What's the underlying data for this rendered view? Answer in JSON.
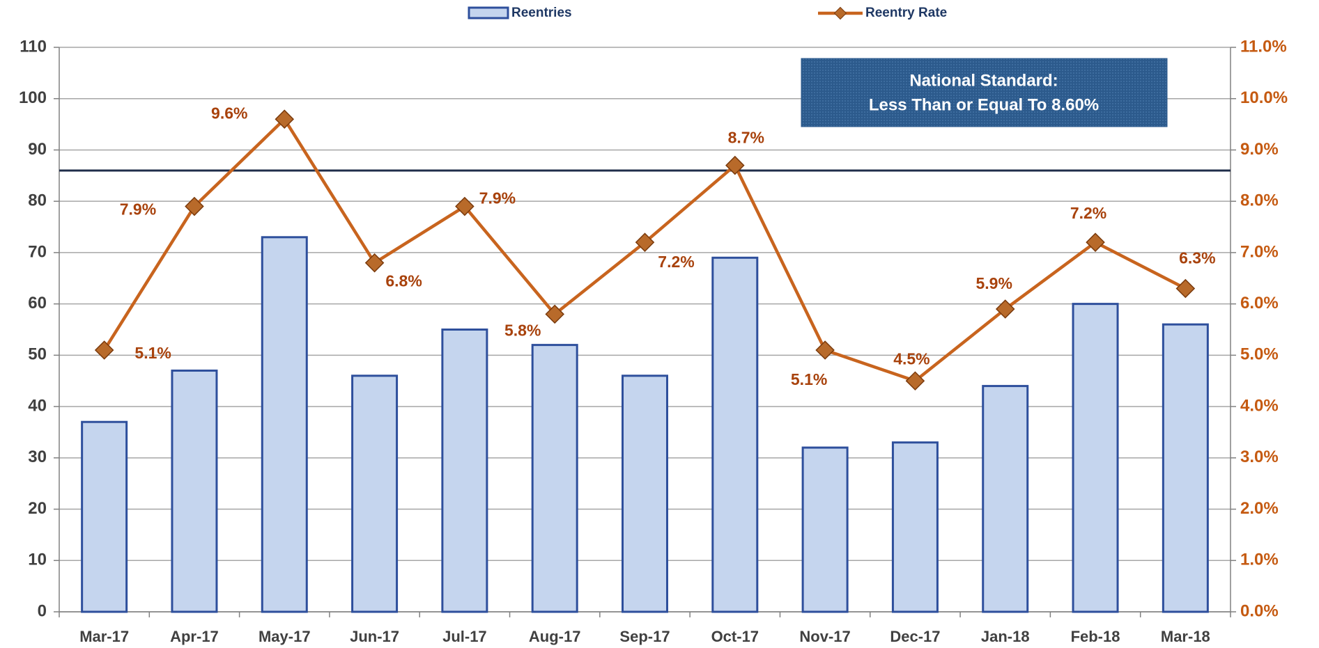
{
  "chart_data": {
    "type": "bar_line",
    "categories": [
      "Mar-17",
      "Apr-17",
      "May-17",
      "Jun-17",
      "Jul-17",
      "Aug-17",
      "Sep-17",
      "Oct-17",
      "Nov-17",
      "Dec-17",
      "Jan-18",
      "Feb-18",
      "Mar-18"
    ],
    "series": [
      {
        "name": "Reentries",
        "type": "bar",
        "color": "#c5d5ee",
        "edge_color": "#2e4f9c",
        "values": [
          37,
          47,
          73,
          46,
          55,
          52,
          46,
          69,
          32,
          33,
          44,
          60,
          56
        ]
      },
      {
        "name": "Reentry Rate",
        "type": "line",
        "axis": "y2",
        "color": "#c8641e",
        "marker_color": "#b86a2a",
        "values": [
          5.1,
          7.9,
          9.6,
          6.8,
          7.9,
          5.8,
          7.2,
          8.7,
          5.1,
          4.5,
          5.9,
          7.2,
          6.3
        ],
        "value_labels": [
          "5.1%",
          "7.9%",
          "9.6%",
          "6.8%",
          "7.9%",
          "5.8%",
          "7.2%",
          "8.7%",
          "5.1%",
          "4.5%",
          "5.9%",
          "7.2%",
          "6.3%"
        ]
      }
    ],
    "ylim": [
      0,
      110
    ],
    "yticks": [
      0,
      10,
      20,
      30,
      40,
      50,
      60,
      70,
      80,
      90,
      100,
      110
    ],
    "y2lim": [
      0,
      11
    ],
    "y2ticks": [
      {
        "value": 0,
        "label": "0.0%"
      },
      {
        "value": 1,
        "label": "1.0%"
      },
      {
        "value": 2,
        "label": "2.0%"
      },
      {
        "value": 3,
        "label": "3.0%"
      },
      {
        "value": 4,
        "label": "4.0%"
      },
      {
        "value": 5,
        "label": "5.0%"
      },
      {
        "value": 6,
        "label": "6.0%"
      },
      {
        "value": 7,
        "label": "7.0%"
      },
      {
        "value": 8,
        "label": "8.0%"
      },
      {
        "value": 9,
        "label": "9.0%"
      },
      {
        "value": 10,
        "label": "10.0%"
      },
      {
        "value": 11,
        "label": "11.0%"
      }
    ],
    "grid": true,
    "legend_position": "top",
    "reference_line": {
      "value": 8.6,
      "axis": "y2",
      "color": "#1f2d4a"
    },
    "annotation": {
      "lines": [
        "National Standard:",
        "Less Than or Equal To 8.60%"
      ]
    }
  }
}
